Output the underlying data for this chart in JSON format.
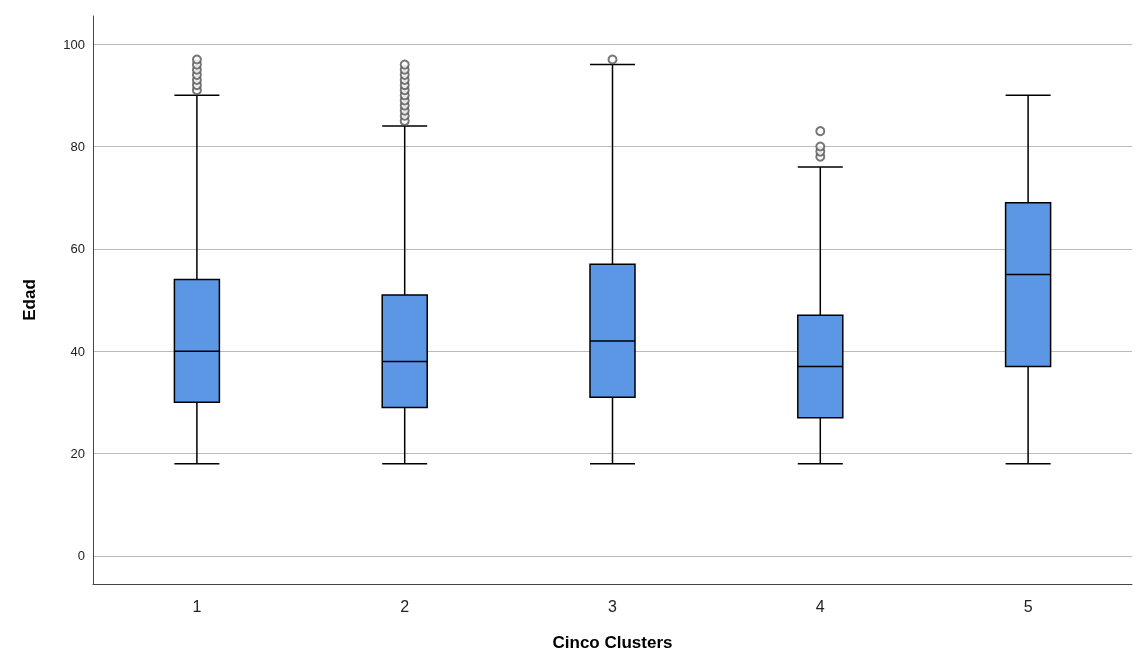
{
  "chart_data": {
    "type": "box",
    "xlabel": "Cinco Clusters",
    "ylabel": "Edad",
    "categories": [
      "1",
      "2",
      "3",
      "4",
      "5"
    ],
    "color": "#5b97e5",
    "boxes": [
      {
        "low": 18,
        "q1": 30,
        "median": 40,
        "q3": 54,
        "high": 90,
        "outliers": [
          91,
          92,
          93,
          94,
          95,
          96,
          97
        ]
      },
      {
        "low": 18,
        "q1": 29,
        "median": 38,
        "q3": 51,
        "high": 84,
        "outliers": [
          85,
          86,
          87,
          88,
          89,
          90,
          91,
          92,
          93,
          94,
          95,
          96
        ]
      },
      {
        "low": 18,
        "q1": 31,
        "median": 42,
        "q3": 57,
        "high": 96,
        "outliers": [
          97
        ]
      },
      {
        "low": 18,
        "q1": 27,
        "median": 37,
        "q3": 47,
        "high": 76,
        "outliers": [
          78,
          79,
          80,
          83
        ]
      },
      {
        "low": 18,
        "q1": 37,
        "median": 55,
        "q3": 69,
        "high": 90
      }
    ],
    "ylim": [
      -5.5,
      105.5
    ],
    "yticks": [
      0,
      20,
      40,
      60,
      80,
      100
    ],
    "grid": "y"
  }
}
